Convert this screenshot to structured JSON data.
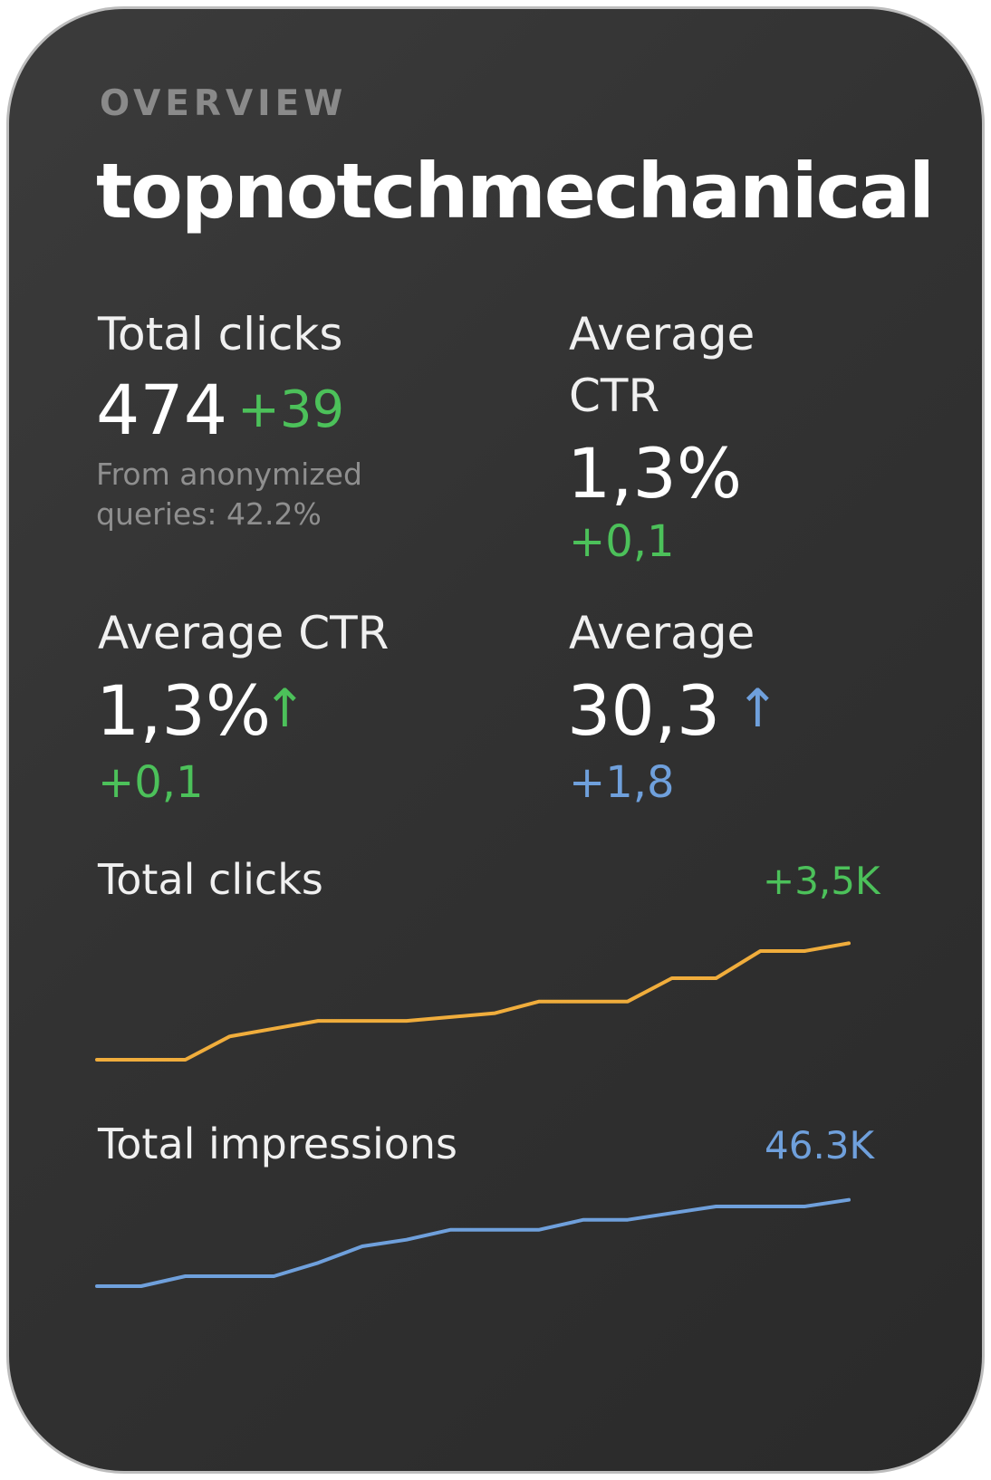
{
  "header": {
    "section_label": "OVERVIEW",
    "site_name": "topnotchmechanical"
  },
  "metrics": {
    "total_clicks": {
      "label": "Total clicks",
      "value": "474",
      "delta": "+39",
      "note": "From anonymized queries: 42.2%"
    },
    "average_ctr_top": {
      "label_line1": "Average",
      "label_line2": "CTR",
      "value": "1,3%",
      "delta": "+0,1"
    },
    "average_ctr": {
      "label": "Average CTR",
      "value": "1,3%",
      "arrow": "↑",
      "delta": "+0,1"
    },
    "average_position": {
      "label": "Average",
      "value": "30,3",
      "arrow": "↑",
      "delta": "+1,8"
    }
  },
  "charts": {
    "clicks": {
      "label": "Total clicks",
      "total": "+3,5K",
      "color": "#f0ad3c"
    },
    "impressions": {
      "label": "Total impressions",
      "total": "46.3K",
      "color": "#6fa0dc"
    }
  },
  "colors": {
    "positive": "#4cc15a",
    "neutral_positive": "#6fa0dc",
    "background": "#333333"
  },
  "chart_data": [
    {
      "type": "line",
      "x": [
        0,
        1,
        2,
        3,
        4,
        5,
        6,
        7,
        8,
        9,
        10,
        11,
        12,
        13,
        14,
        15,
        16,
        17
      ],
      "series": [
        {
          "values": [
            0,
            0,
            0,
            0.6,
            0.8,
            1.0,
            1.0,
            1.0,
            1.1,
            1.2,
            1.5,
            1.5,
            1.5,
            2.1,
            2.1,
            2.8,
            2.8,
            3.0
          ]
        }
      ],
      "ylim": [
        0,
        3.5
      ]
    },
    {
      "type": "line",
      "x": [
        0,
        1,
        2,
        3,
        4,
        5,
        6,
        7,
        8,
        9,
        10,
        11,
        12,
        13,
        14,
        15,
        16,
        17
      ],
      "series": [
        {
          "values": [
            0,
            0,
            0.15,
            0.15,
            0.15,
            0.35,
            0.6,
            0.7,
            0.85,
            0.85,
            0.85,
            1.0,
            1.0,
            1.1,
            1.2,
            1.2,
            1.2,
            1.3
          ]
        }
      ],
      "ylim": [
        0,
        1.5
      ]
    }
  ]
}
